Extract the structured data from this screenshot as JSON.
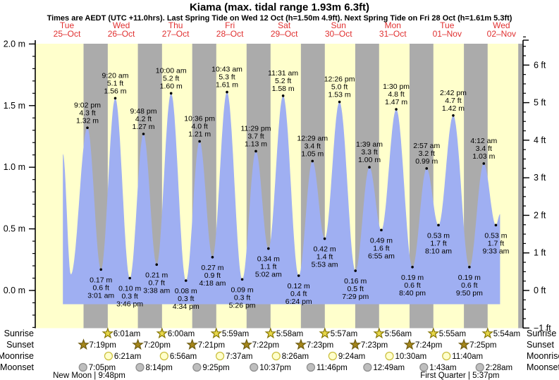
{
  "chart_data": {
    "type": "area",
    "title": "Kiama (max. tidal range 1.93m 6.3ft)",
    "subtitle": "Times are AEDT (UTC +11.0hrs). Last Spring Tide on Wed 12 Oct (h=1.50m 4.9ft). Next Spring Tide on Fri 28 Oct (h=1.61m 5.3ft)",
    "days": [
      {
        "weekday": "Tue",
        "date": "25–Oct"
      },
      {
        "weekday": "Wed",
        "date": "26–Oct"
      },
      {
        "weekday": "Thu",
        "date": "27–Oct"
      },
      {
        "weekday": "Fri",
        "date": "28–Oct"
      },
      {
        "weekday": "Sat",
        "date": "29–Oct"
      },
      {
        "weekday": "Sun",
        "date": "30–Oct"
      },
      {
        "weekday": "Mon",
        "date": "31–Oct"
      },
      {
        "weekday": "Tue",
        "date": "01–Nov"
      },
      {
        "weekday": "Wed",
        "date": "02–Nov"
      }
    ],
    "y_axis_left": {
      "unit": "m",
      "major_labels": [
        "0.0 m",
        "0.5 m",
        "1.0 m",
        "1.5 m",
        "2.0 m"
      ],
      "major_values": [
        0,
        0.5,
        1,
        1.5,
        2
      ],
      "minor_step_m": 0.1,
      "minor_min_m": -0.3,
      "minor_max_m": 2.0
    },
    "y_axis_right": {
      "unit": "ft",
      "major_labels": [
        "−1 ft",
        "0 ft",
        "1 ft",
        "2 ft",
        "3 ft",
        "4 ft",
        "5 ft",
        "6 ft"
      ],
      "major_values_ft": [
        -1,
        0,
        1,
        2,
        3,
        4,
        5,
        6
      ],
      "minor_step_ft": 0.25,
      "minor_min_ft": -1,
      "minor_max_ft": 6.75
    },
    "night_bands_hours": [
      [
        19.32,
        30.02
      ],
      [
        43.33,
        54.0
      ],
      [
        67.35,
        77.98
      ],
      [
        91.37,
        101.97
      ],
      [
        115.38,
        125.95
      ],
      [
        139.38,
        149.93
      ],
      [
        163.4,
        173.92
      ],
      [
        187.42,
        197.9
      ],
      [
        211.43,
        215.6
      ]
    ],
    "curve_clip": {
      "start_hours": 10.2,
      "start_m": 1.11,
      "pre_trough_hours": 13.7,
      "pre_trough_m": 0.13,
      "end_hours": 203.4,
      "end_m": 0.62
    },
    "tide_extremes": [
      {
        "kind": "high",
        "time": "9:02 pm",
        "hours": 21.033,
        "ft": "4.3 ft",
        "m": 1.32
      },
      {
        "kind": "low",
        "time": "3:01 am",
        "hours": 27.017,
        "ft": "0.6 ft",
        "m": 0.17
      },
      {
        "kind": "high",
        "time": "9:20 am",
        "hours": 33.333,
        "ft": "5.1 ft",
        "m": 1.56
      },
      {
        "kind": "low",
        "time": "3:46 pm",
        "hours": 39.767,
        "ft": "0.3 ft",
        "m": 0.1
      },
      {
        "kind": "high",
        "time": "9:48 pm",
        "hours": 45.8,
        "ft": "4.2 ft",
        "m": 1.27
      },
      {
        "kind": "low",
        "time": "3:38 am",
        "hours": 51.633,
        "ft": "0.7 ft",
        "m": 0.21
      },
      {
        "kind": "high",
        "time": "10:00 am",
        "hours": 58.0,
        "ft": "5.2 ft",
        "m": 1.6
      },
      {
        "kind": "low",
        "time": "4:34 pm",
        "hours": 64.567,
        "ft": "0.3 ft",
        "m": 0.08
      },
      {
        "kind": "high",
        "time": "10:36 pm",
        "hours": 70.6,
        "ft": "4.0 ft",
        "m": 1.21
      },
      {
        "kind": "low",
        "time": "4:18 am",
        "hours": 76.3,
        "ft": "0.9 ft",
        "m": 0.27
      },
      {
        "kind": "high",
        "time": "10:43 am",
        "hours": 82.717,
        "ft": "5.3 ft",
        "m": 1.61
      },
      {
        "kind": "low",
        "time": "5:26 pm",
        "hours": 89.433,
        "ft": "0.3 ft",
        "m": 0.09
      },
      {
        "kind": "high",
        "time": "11:29 pm",
        "hours": 95.483,
        "ft": "3.7 ft",
        "m": 1.13
      },
      {
        "kind": "low",
        "time": "5:02 am",
        "hours": 101.033,
        "ft": "1.1 ft",
        "m": 0.34
      },
      {
        "kind": "high",
        "time": "11:31 am",
        "hours": 107.517,
        "ft": "5.2 ft",
        "m": 1.58
      },
      {
        "kind": "low",
        "time": "6:24 pm",
        "hours": 114.4,
        "ft": "0.4 ft",
        "m": 0.12
      },
      {
        "kind": "high",
        "time": "12:29 am",
        "hours": 120.483,
        "ft": "3.4 ft",
        "m": 1.05
      },
      {
        "kind": "low",
        "time": "5:53 am",
        "hours": 125.883,
        "ft": "1.4 ft",
        "m": 0.42
      },
      {
        "kind": "high",
        "time": "12:26 pm",
        "hours": 132.433,
        "ft": "5.0 ft",
        "m": 1.53
      },
      {
        "kind": "low",
        "time": "7:29 pm",
        "hours": 139.483,
        "ft": "0.5 ft",
        "m": 0.16
      },
      {
        "kind": "high",
        "time": "1:39 am",
        "hours": 145.65,
        "ft": "3.3 ft",
        "m": 1.0
      },
      {
        "kind": "low",
        "time": "6:55 am",
        "hours": 150.917,
        "ft": "1.6 ft",
        "m": 0.49
      },
      {
        "kind": "high",
        "time": "1:30 pm",
        "hours": 157.5,
        "ft": "4.8 ft",
        "m": 1.47
      },
      {
        "kind": "low",
        "time": "8:40 pm",
        "hours": 164.667,
        "ft": "0.6 ft",
        "m": 0.19
      },
      {
        "kind": "high",
        "time": "2:57 am",
        "hours": 170.95,
        "ft": "3.2 ft",
        "m": 0.99
      },
      {
        "kind": "low",
        "time": "8:10 am",
        "hours": 176.167,
        "ft": "1.7 ft",
        "m": 0.53
      },
      {
        "kind": "high",
        "time": "2:42 pm",
        "hours": 182.7,
        "ft": "4.7 ft",
        "m": 1.42
      },
      {
        "kind": "low",
        "time": "9:50 pm",
        "hours": 189.833,
        "ft": "0.6 ft",
        "m": 0.19
      },
      {
        "kind": "high",
        "time": "4:12 am",
        "hours": 196.2,
        "ft": "3.4 ft",
        "m": 1.03
      },
      {
        "kind": "low",
        "time": "9:33 am",
        "hours": 201.55,
        "ft": "1.7 ft",
        "m": 0.53
      }
    ],
    "sun_moon": {
      "rows": [
        {
          "name": "Sunrise",
          "icon": "sunrise-star",
          "events": [
            {
              "time": "6:01am",
              "hours": 30.017
            },
            {
              "time": "6:00am",
              "hours": 54.0
            },
            {
              "time": "5:59am",
              "hours": 77.983
            },
            {
              "time": "5:58am",
              "hours": 101.967
            },
            {
              "time": "5:57am",
              "hours": 125.95
            },
            {
              "time": "5:56am",
              "hours": 149.933
            },
            {
              "time": "5:55am",
              "hours": 173.917
            },
            {
              "time": "5:54am",
              "hours": 197.9
            }
          ]
        },
        {
          "name": "Sunset",
          "icon": "sunset-star",
          "events": [
            {
              "time": "7:19pm",
              "hours": 19.317
            },
            {
              "time": "7:20pm",
              "hours": 43.333
            },
            {
              "time": "7:21pm",
              "hours": 67.35
            },
            {
              "time": "7:22pm",
              "hours": 91.367
            },
            {
              "time": "7:23pm",
              "hours": 115.383
            },
            {
              "time": "7:23pm",
              "hours": 139.383
            },
            {
              "time": "7:24pm",
              "hours": 163.4
            },
            {
              "time": "7:25pm",
              "hours": 187.417
            }
          ]
        },
        {
          "name": "Moonrise",
          "icon": "moonrise-circle",
          "events": [
            {
              "time": "6:21am",
              "hours": 30.35
            },
            {
              "time": "6:56am",
              "hours": 54.933
            },
            {
              "time": "7:37am",
              "hours": 79.617
            },
            {
              "time": "8:26am",
              "hours": 104.433
            },
            {
              "time": "9:24am",
              "hours": 129.4
            },
            {
              "time": "10:30am",
              "hours": 154.5
            },
            {
              "time": "11:40am",
              "hours": 179.667
            }
          ]
        },
        {
          "name": "Moonset",
          "icon": "moonset-circle",
          "events": [
            {
              "time": "7:05pm",
              "hours": 19.083
            },
            {
              "time": "8:14pm",
              "hours": 44.233
            },
            {
              "time": "9:25pm",
              "hours": 69.417
            },
            {
              "time": "10:37pm",
              "hours": 94.617
            },
            {
              "time": "11:46pm",
              "hours": 119.767
            },
            {
              "time": "12:49am",
              "hours": 144.817
            },
            {
              "time": "1:43am",
              "hours": 169.717
            },
            {
              "time": "2:28am",
              "hours": 194.467
            }
          ]
        }
      ],
      "phases": [
        {
          "name": "New Moon",
          "time": "9:48pm",
          "hours": 21.8
        },
        {
          "name": "First Quarter",
          "time": "5:37pm",
          "hours": 185.62
        }
      ]
    },
    "colors": {
      "day_band": "#FFFFCC",
      "night_band": "#ABABAB",
      "tide_fill": "#9FAFF2",
      "day_label": "#E03030",
      "axis": "#000000",
      "sunrise_fill": "#E8D84A",
      "sunrise_stroke": "#847400",
      "sunset_fill": "#A5861A",
      "sunset_stroke": "#6E5C10",
      "moonrise_fill": "#FFFFCC",
      "moonrise_stroke": "#CCC040",
      "moonset_fill": "#BEBEBE",
      "moonset_stroke": "#8F8F8F"
    }
  }
}
